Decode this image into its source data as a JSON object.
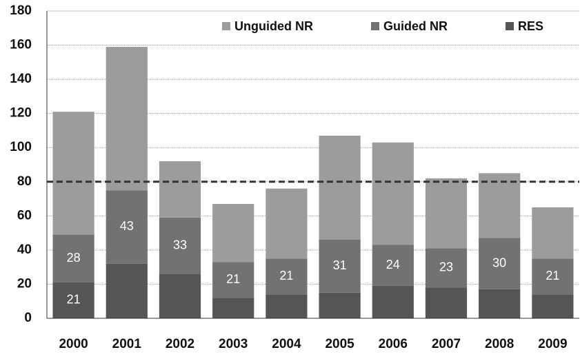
{
  "chart_data": {
    "type": "stacked_bar",
    "categories": [
      "2000",
      "2001",
      "2002",
      "2003",
      "2004",
      "2005",
      "2006",
      "2007",
      "2008",
      "2009"
    ],
    "series": [
      {
        "name": "RES",
        "color": "#555555",
        "values": [
          21,
          32,
          26,
          12,
          14,
          15,
          19,
          18,
          17,
          14
        ],
        "value_labels": [
          "21",
          null,
          null,
          null,
          null,
          null,
          null,
          null,
          null,
          null
        ]
      },
      {
        "name": "Guided NR",
        "color": "#727272",
        "values": [
          28,
          43,
          33,
          21,
          21,
          31,
          24,
          23,
          30,
          21
        ],
        "value_labels": [
          "28",
          "43",
          "33",
          "21",
          "21",
          "31",
          "24",
          "23",
          "30",
          "21"
        ]
      },
      {
        "name": "Unguided NR",
        "color": "#9c9c9c",
        "values": [
          72,
          84,
          33,
          34,
          41,
          61,
          60,
          41,
          38,
          30
        ]
      }
    ],
    "legend_order": [
      "Unguided NR",
      "Guided NR",
      "RES"
    ],
    "reference_line": 80,
    "ylim": [
      0,
      180
    ],
    "yticks": [
      0,
      20,
      40,
      60,
      80,
      100,
      120,
      140,
      160,
      180
    ],
    "grid": true
  }
}
